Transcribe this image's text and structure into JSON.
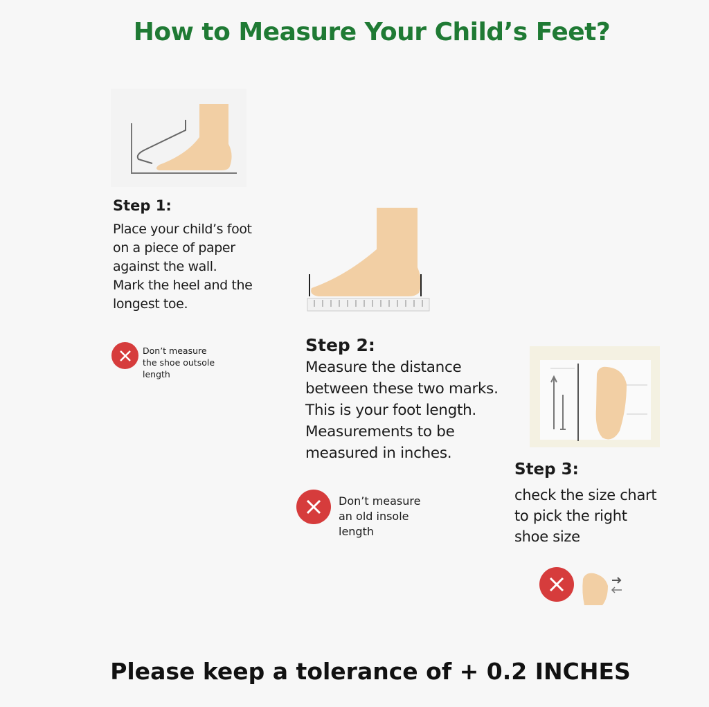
{
  "title": "How to Measure Your Child’s Feet?",
  "colors": {
    "title": "#1f7a34",
    "foot": "#f2cfa4",
    "warning": "#d63c3c",
    "background": "#f7f7f7"
  },
  "steps": [
    {
      "heading": "Step 1:",
      "body": "Place your child’s foot\non a piece of paper\nagainst the wall.\nMark the heel and the\nlongest toe.",
      "warning": "Don’t measure\nthe shoe outsole\nlength",
      "icon": "foot-against-wall-icon"
    },
    {
      "heading": "Step 2:",
      "body": "Measure the distance\nbetween these two marks.\nThis is your foot length.\nMeasurements to be\nmeasured in inches.",
      "warning": "Don’t measure\nan old insole\nlength",
      "icon": "foot-on-ruler-icon"
    },
    {
      "heading": "Step 3:",
      "body": "check the size chart\nto pick the right\nshoe size",
      "icon": "foot-size-chart-icon",
      "warning_icon": "foot-with-arrows-icon"
    }
  ],
  "footer": "Please keep a tolerance of + 0.2 INCHES"
}
